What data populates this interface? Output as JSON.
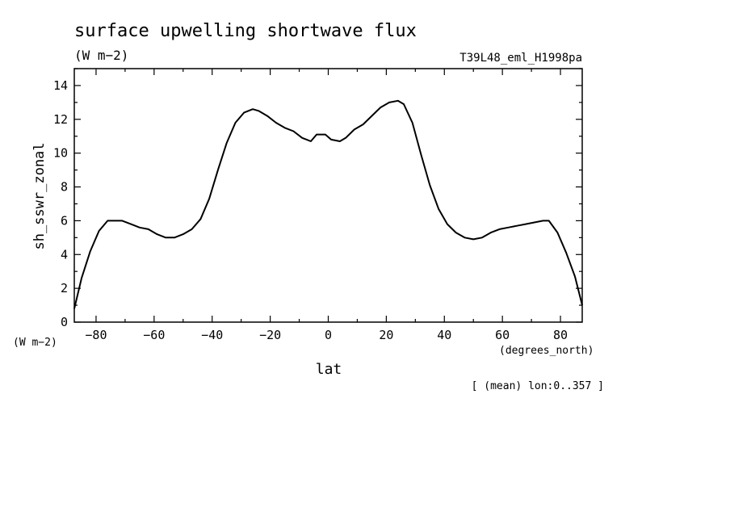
{
  "title": "surface upwelling shortwave flux",
  "units": "(W m−2)",
  "run_label": "T39L48_eml_H1998pa",
  "y_units_label": "(W m−2)",
  "x_units_label": "(degrees_north)",
  "footnote": "[ (mean) lon:0..357 ]",
  "chart_data": {
    "type": "line",
    "title": "surface upwelling shortwave flux",
    "xlabel": "lat",
    "ylabel": "sh_sswr_zonal",
    "xlim": [
      -87.5,
      87.5
    ],
    "ylim": [
      0,
      15
    ],
    "x_ticks": [
      -80,
      -60,
      -40,
      -20,
      0,
      20,
      40,
      60,
      80
    ],
    "y_ticks": [
      0,
      2,
      4,
      6,
      8,
      10,
      12,
      14
    ],
    "x_tick_labels": [
      "−80",
      "−60",
      "−40",
      "−20",
      "0",
      "20",
      "40",
      "60",
      "80"
    ],
    "y_tick_labels": [
      "0",
      "2",
      "4",
      "6",
      "8",
      "10",
      "12",
      "14"
    ],
    "grid": false,
    "series": [
      {
        "x": [
          -87.5,
          -85,
          -82,
          -79,
          -76,
          -74,
          -71,
          -68,
          -65,
          -62,
          -59,
          -56,
          -53,
          -50,
          -47,
          -44,
          -41,
          -38,
          -35,
          -32,
          -29,
          -26,
          -24,
          -21,
          -18,
          -15,
          -12,
          -9,
          -6,
          -4,
          -1,
          1,
          4,
          6,
          9,
          12,
          15,
          18,
          21,
          24,
          26,
          29,
          32,
          35,
          38,
          41,
          44,
          47,
          50,
          53,
          56,
          59,
          62,
          65,
          68,
          71,
          74,
          76,
          79,
          82,
          85,
          87.5
        ],
        "y": [
          0.8,
          2.6,
          4.2,
          5.4,
          6.0,
          6.0,
          6.0,
          5.8,
          5.6,
          5.5,
          5.2,
          5.0,
          5.0,
          5.2,
          5.5,
          6.1,
          7.3,
          9.0,
          10.6,
          11.8,
          12.4,
          12.6,
          12.5,
          12.2,
          11.8,
          11.5,
          11.3,
          10.9,
          10.7,
          11.1,
          11.1,
          10.8,
          10.7,
          10.9,
          11.4,
          11.7,
          12.2,
          12.7,
          13.0,
          13.1,
          12.9,
          11.8,
          9.9,
          8.1,
          6.7,
          5.8,
          5.3,
          5.0,
          4.9,
          5.0,
          5.3,
          5.5,
          5.6,
          5.7,
          5.8,
          5.9,
          6.0,
          6.0,
          5.3,
          4.1,
          2.7,
          1.0
        ]
      }
    ]
  }
}
